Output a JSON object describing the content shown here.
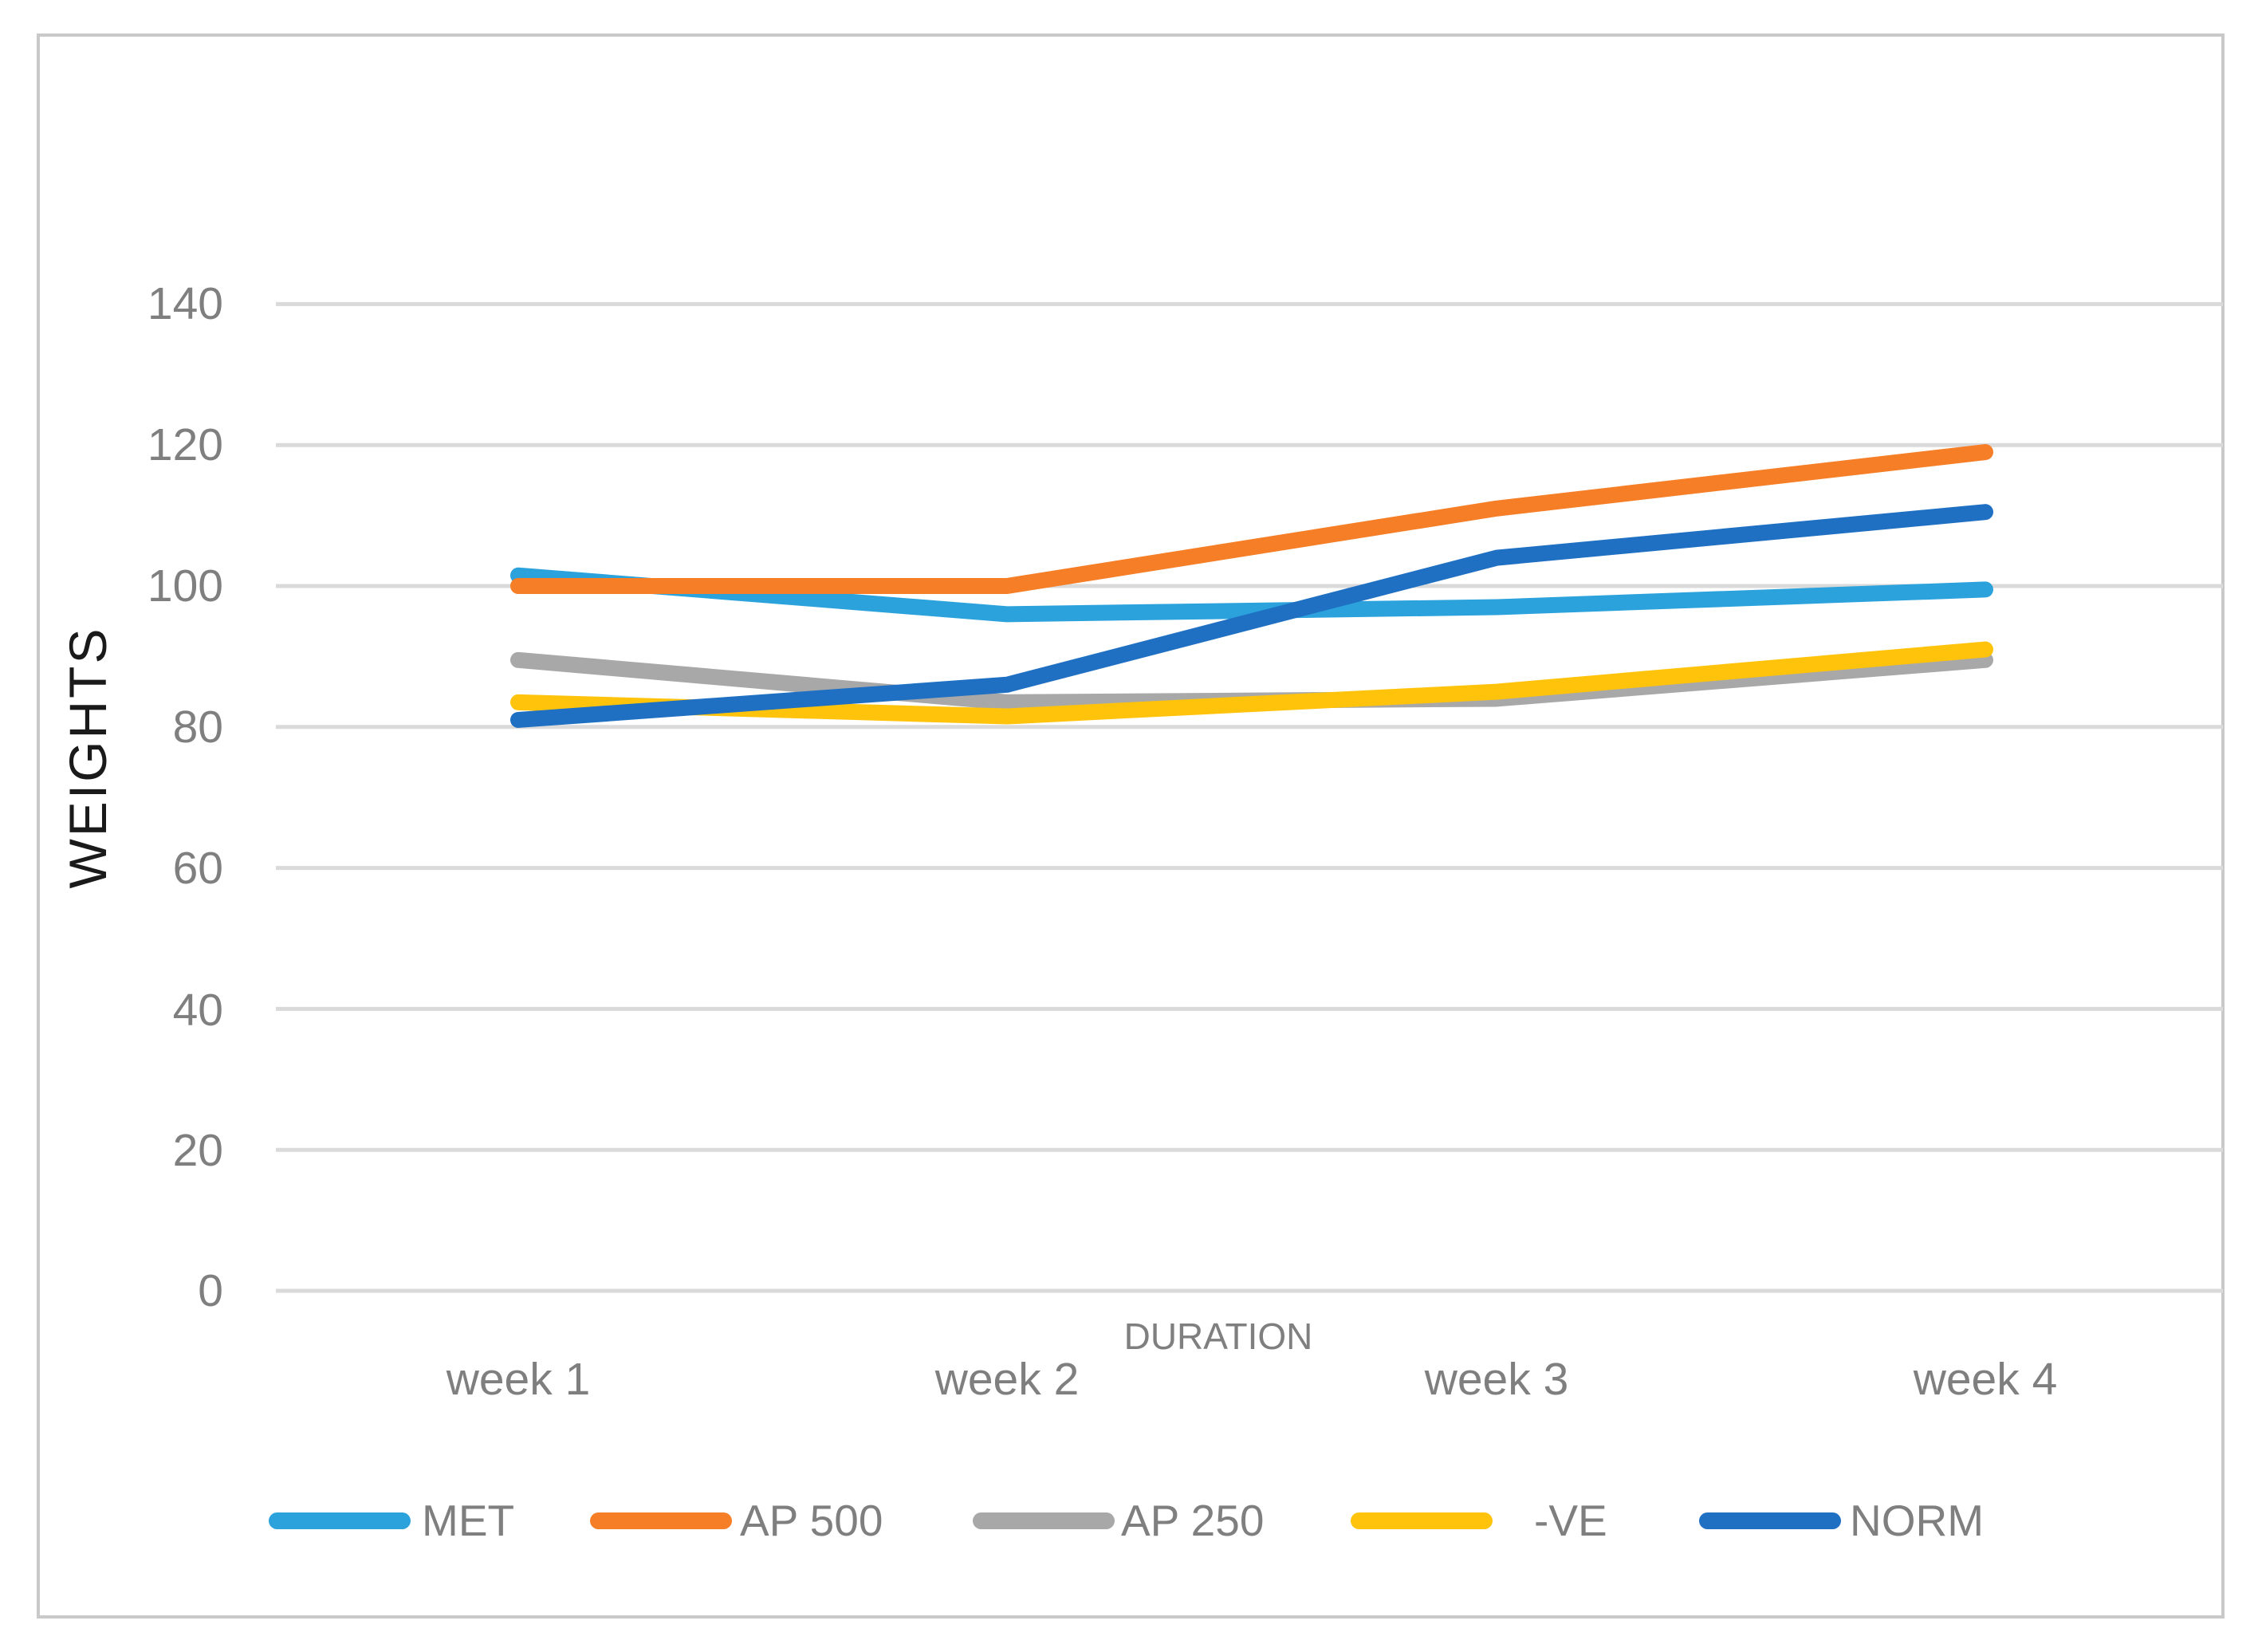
{
  "chart": {
    "title": "",
    "y_axis_title": "WEIGHTS",
    "x_axis_title": "DURATION"
  },
  "chart_data": {
    "type": "line",
    "categories": [
      "week 1",
      "week 2",
      "week 3",
      "week 4"
    ],
    "series": [
      {
        "name": "MET",
        "color": "#2BA2DC",
        "values": [
          101.5,
          96,
          97,
          99.5
        ]
      },
      {
        "name": "AP 500",
        "color": "#F57E27",
        "values": [
          100,
          100,
          111,
          119
        ]
      },
      {
        "name": "AP 250",
        "color": "#A8A8A8",
        "values": [
          89.5,
          83.5,
          84,
          89.5
        ]
      },
      {
        "name": "-VE",
        "color": "#FFC30B",
        "values": [
          83.5,
          81.5,
          85,
          91
        ]
      },
      {
        "name": "NORM",
        "color": "#1F70C3",
        "values": [
          81,
          86,
          104,
          110.5
        ]
      }
    ],
    "xlabel": "DURATION",
    "ylabel": "WEIGHTS",
    "y_ticks": [
      0,
      20,
      40,
      60,
      80,
      100,
      120,
      140
    ],
    "ylim": [
      0,
      150
    ],
    "grid": "horizontal",
    "gridline_color": "#DADADA",
    "axis_text_color": "#7F7F7F",
    "legend_position": "bottom"
  }
}
